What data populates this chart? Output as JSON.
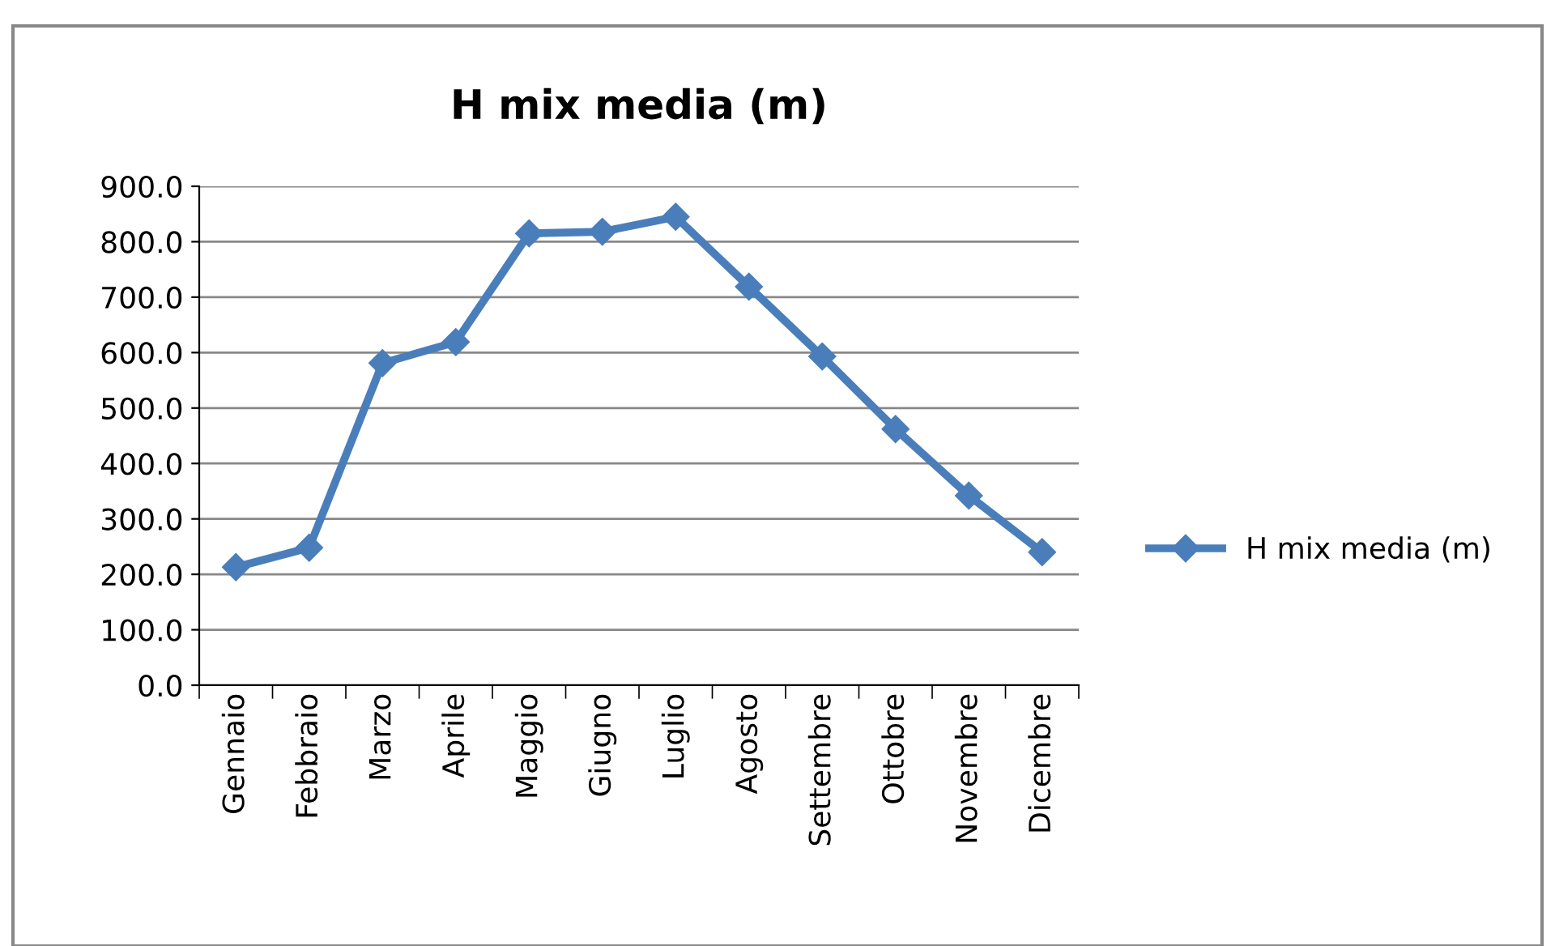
{
  "chart_data": {
    "type": "line",
    "title": "H mix media (m)",
    "categories": [
      "Gennaio",
      "Febbraio",
      "Marzo",
      "Aprile",
      "Maggio",
      "Giugno",
      "Luglio",
      "Agosto",
      "Settembre",
      "Ottobre",
      "Novembre",
      "Dicembre"
    ],
    "series": [
      {
        "name": "H mix media (m)",
        "color": "#4a7ebb",
        "values": [
          213,
          248,
          581,
          619,
          815,
          818,
          845,
          719,
          593,
          462,
          342,
          240
        ]
      }
    ],
    "ylim": [
      0,
      900
    ],
    "yticks": [
      {
        "value": 0,
        "label": "0.0"
      },
      {
        "value": 100,
        "label": "100.0"
      },
      {
        "value": 200,
        "label": "200.0"
      },
      {
        "value": 300,
        "label": "300.0"
      },
      {
        "value": 400,
        "label": "400.0"
      },
      {
        "value": 500,
        "label": "500.0"
      },
      {
        "value": 600,
        "label": "600.0"
      },
      {
        "value": 700,
        "label": "700.0"
      },
      {
        "value": 800,
        "label": "800.0"
      },
      {
        "value": 900,
        "label": "900.0"
      }
    ],
    "grid": "y",
    "legend": "right",
    "marker": "diamond",
    "line_style": "solid"
  }
}
